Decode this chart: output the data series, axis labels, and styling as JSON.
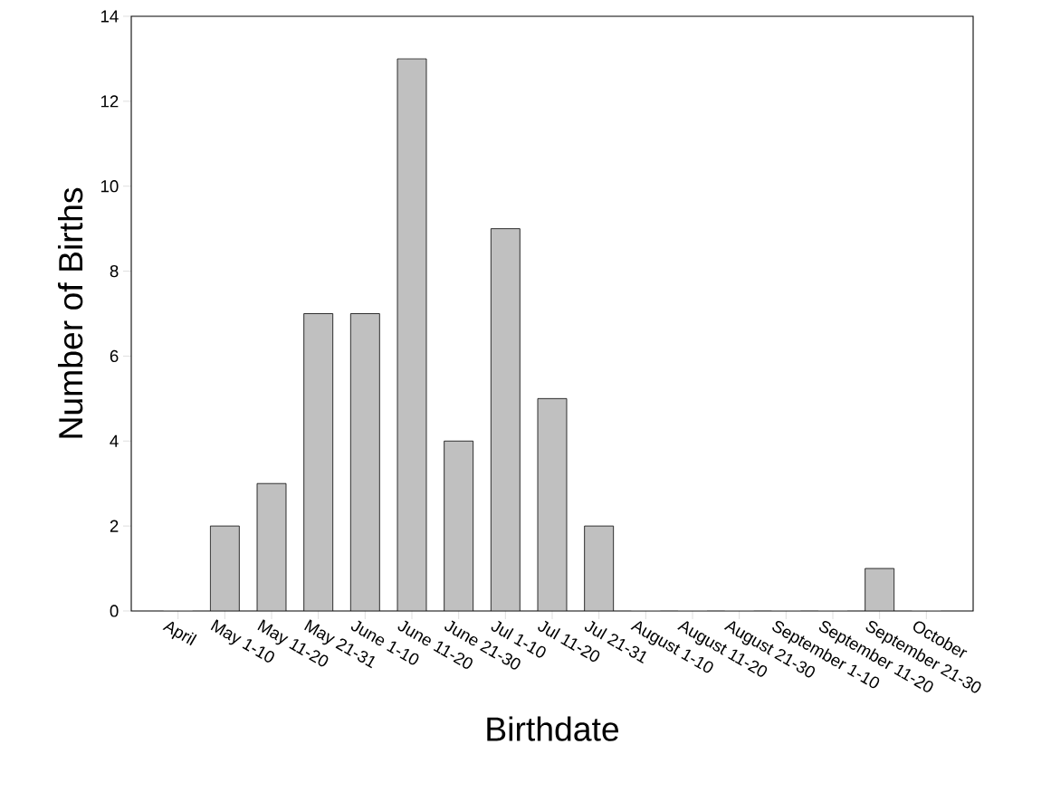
{
  "chart_data": {
    "type": "bar",
    "xlabel": "Birthdate",
    "ylabel": "Number of Births",
    "categories": [
      "April",
      "May 1-10",
      "May 11-20",
      "May 21-31",
      "June 1-10",
      "June 11-20",
      "June 21-30",
      "Jul 1-10",
      "Jul 11-20",
      "Jul 21-31",
      "August 1-10",
      "August 11-20",
      "August 21-30",
      "September 1-10",
      "September 11-20",
      "September 21-30",
      "October"
    ],
    "values": [
      0,
      2,
      3,
      7,
      7,
      13,
      4,
      9,
      5,
      2,
      0,
      0,
      0,
      0,
      0,
      1,
      0
    ],
    "color": "#c0c0c0",
    "ylim": [
      0,
      14
    ],
    "yticks": [
      0,
      2,
      4,
      6,
      8,
      10,
      12,
      14
    ],
    "grid": false
  }
}
